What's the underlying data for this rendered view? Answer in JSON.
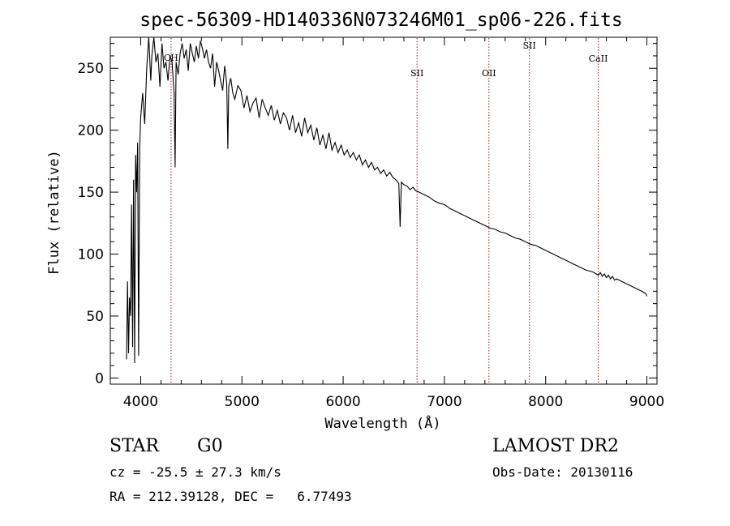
{
  "chart_data": {
    "type": "line",
    "title": "spec-56309-HD140336N073246M01_sp06-226.fits",
    "xlabel": "Wavelength (Å)",
    "ylabel": "Flux (relative)",
    "xlim": [
      3700,
      9100
    ],
    "ylim": [
      -5,
      275
    ],
    "xticks": [
      4000,
      5000,
      6000,
      7000,
      8000,
      9000
    ],
    "yticks": [
      0,
      50,
      100,
      150,
      200,
      250
    ],
    "grid": false,
    "line_color": "#000000",
    "marker_color": "#8b1a1a",
    "series": [
      {
        "x": [
          3860,
          3870,
          3880,
          3890,
          3900,
          3910,
          3920,
          3930,
          3940,
          3950,
          3960,
          3970,
          3980,
          3990,
          4000,
          4020,
          4040,
          4060,
          4080,
          4100,
          4110,
          4130,
          4150,
          4170,
          4190,
          4210,
          4230,
          4250,
          4270,
          4290,
          4310,
          4330,
          4340,
          4350,
          4370,
          4390,
          4410,
          4430,
          4450,
          4470,
          4490,
          4510,
          4530,
          4550,
          4570,
          4590,
          4610,
          4630,
          4650,
          4670,
          4690,
          4710,
          4730,
          4750,
          4770,
          4790,
          4810,
          4830,
          4850,
          4861,
          4870,
          4890,
          4910,
          4930,
          4960,
          4990,
          5020,
          5050,
          5080,
          5110,
          5140,
          5170,
          5200,
          5230,
          5260,
          5290,
          5320,
          5350,
          5380,
          5410,
          5440,
          5470,
          5500,
          5530,
          5560,
          5590,
          5620,
          5650,
          5680,
          5710,
          5740,
          5770,
          5800,
          5830,
          5860,
          5890,
          5920,
          5950,
          5980,
          6010,
          6040,
          6070,
          6100,
          6130,
          6160,
          6190,
          6220,
          6250,
          6280,
          6310,
          6340,
          6370,
          6400,
          6430,
          6460,
          6490,
          6520,
          6550,
          6563,
          6575,
          6600,
          6630,
          6660,
          6690,
          6720,
          6750,
          6800,
          6850,
          6900,
          6950,
          7000,
          7050,
          7100,
          7150,
          7200,
          7250,
          7300,
          7350,
          7400,
          7450,
          7500,
          7550,
          7600,
          7650,
          7700,
          7750,
          7800,
          7850,
          7900,
          7950,
          8000,
          8050,
          8100,
          8150,
          8200,
          8250,
          8300,
          8350,
          8400,
          8450,
          8480,
          8500,
          8520,
          8540,
          8560,
          8580,
          8600,
          8620,
          8640,
          8660,
          8680,
          8700,
          8750,
          8800,
          8850,
          8900,
          8950,
          8970,
          8990,
          8995,
          9000
        ],
        "y": [
          15,
          78,
          20,
          65,
          50,
          140,
          25,
          160,
          12,
          180,
          150,
          190,
          18,
          185,
          210,
          230,
          205,
          250,
          275,
          240,
          260,
          275,
          255,
          262,
          235,
          270,
          250,
          255,
          240,
          260,
          255,
          230,
          170,
          255,
          245,
          262,
          270,
          258,
          265,
          248,
          270,
          262,
          255,
          268,
          258,
          272,
          266,
          258,
          265,
          255,
          250,
          262,
          235,
          255,
          248,
          240,
          232,
          252,
          238,
          185,
          235,
          242,
          230,
          225,
          236,
          232,
          218,
          228,
          215,
          222,
          226,
          210,
          225,
          218,
          212,
          220,
          208,
          216,
          205,
          214,
          210,
          200,
          212,
          198,
          206,
          195,
          210,
          198,
          204,
          192,
          202,
          188,
          196,
          185,
          198,
          184,
          190,
          182,
          188,
          180,
          184,
          178,
          182,
          176,
          180,
          172,
          176,
          170,
          174,
          168,
          170,
          165,
          168,
          163,
          166,
          162,
          160,
          157,
          122,
          158,
          156,
          155,
          152,
          154,
          151,
          150,
          148,
          146,
          143,
          141,
          140,
          137,
          135,
          133,
          131,
          129,
          127,
          125,
          123,
          121,
          120,
          118,
          117,
          115,
          113,
          112,
          110,
          108,
          107,
          105,
          103,
          101,
          99,
          97,
          95,
          93,
          91,
          89,
          87,
          86,
          85,
          84,
          83,
          85,
          82,
          84,
          81,
          83,
          80,
          82,
          79,
          80,
          78,
          76,
          74,
          72,
          70,
          69,
          68,
          67,
          66
        ]
      }
    ],
    "lines": [
      {
        "label": "CH",
        "x": 4300
      },
      {
        "label": "SII",
        "x": 6730
      },
      {
        "label": "OII",
        "x": 7440
      },
      {
        "label": "SII",
        "x": 7840
      },
      {
        "label": "CaII",
        "x": 8520
      }
    ]
  },
  "info": {
    "object_class": "STAR",
    "subclass": "G0",
    "cz": "cz = -25.5 ± 27.3 km/s",
    "radec": "RA = 212.39128, DEC =   6.77493",
    "survey": "LAMOST DR2",
    "obs_date": "Obs-Date: 20130116"
  }
}
